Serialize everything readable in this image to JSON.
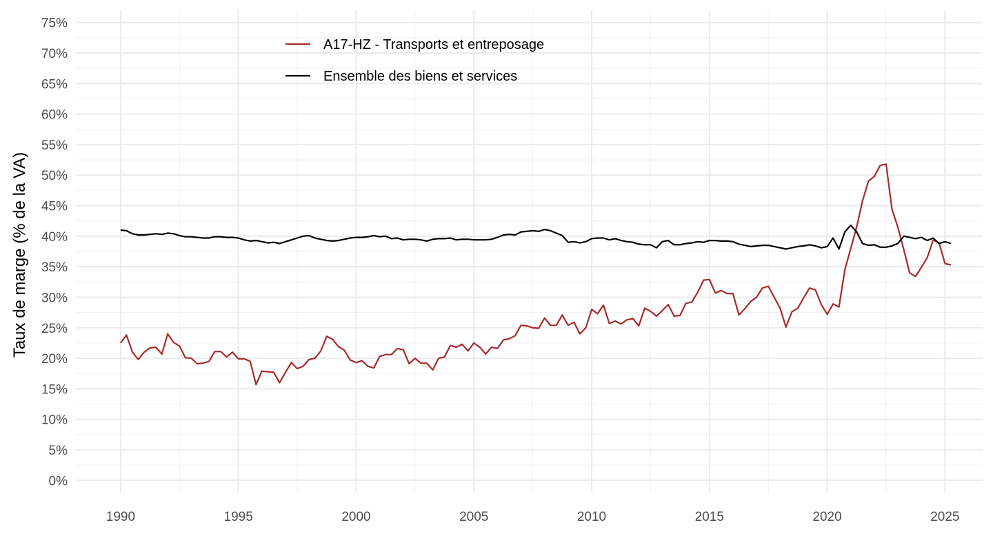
{
  "chart_data": {
    "type": "line",
    "title": "",
    "xlabel": "",
    "ylabel": "Taux de marge (% de la VA)",
    "xlim": [
      1988.1,
      2026.6
    ],
    "ylim": [
      -0.02,
      0.77
    ],
    "x_ticks": [
      1990,
      1995,
      2000,
      2005,
      2010,
      2015,
      2020,
      2025
    ],
    "x_tick_labels": [
      "1990",
      "1995",
      "2000",
      "2005",
      "2010",
      "2015",
      "2020",
      "2025"
    ],
    "y_ticks": [
      0,
      0.05,
      0.1,
      0.15,
      0.2,
      0.25,
      0.3,
      0.35,
      0.4,
      0.45,
      0.5,
      0.55,
      0.6,
      0.65,
      0.7,
      0.75
    ],
    "y_tick_labels": [
      "0%",
      "5%",
      "10%",
      "15%",
      "20%",
      "25%",
      "30%",
      "35%",
      "40%",
      "45%",
      "50%",
      "55%",
      "60%",
      "65%",
      "70%",
      "75%"
    ],
    "grid": true,
    "legend_position": "top-center",
    "series": [
      {
        "name": "A17-HZ - Transports et entreposage",
        "color": "#a52a2a",
        "x": [
          1990.0,
          1990.25,
          1990.5,
          1990.75,
          1991.0,
          1991.25,
          1991.5,
          1991.75,
          1992.0,
          1992.25,
          1992.5,
          1992.75,
          1993.0,
          1993.25,
          1993.5,
          1993.75,
          1994.0,
          1994.25,
          1994.5,
          1994.75,
          1995.0,
          1995.25,
          1995.5,
          1995.75,
          1996.0,
          1996.25,
          1996.5,
          1996.75,
          1997.0,
          1997.25,
          1997.5,
          1997.75,
          1998.0,
          1998.25,
          1998.5,
          1998.75,
          1999.0,
          1999.25,
          1999.5,
          1999.75,
          2000.0,
          2000.25,
          2000.5,
          2000.75,
          2001.0,
          2001.25,
          2001.5,
          2001.75,
          2002.0,
          2002.25,
          2002.5,
          2002.75,
          2003.0,
          2003.25,
          2003.5,
          2003.75,
          2004.0,
          2004.25,
          2004.5,
          2004.75,
          2005.0,
          2005.25,
          2005.5,
          2005.75,
          2006.0,
          2006.25,
          2006.5,
          2006.75,
          2007.0,
          2007.25,
          2007.5,
          2007.75,
          2008.0,
          2008.25,
          2008.5,
          2008.75,
          2009.0,
          2009.25,
          2009.5,
          2009.75,
          2010.0,
          2010.25,
          2010.5,
          2010.75,
          2011.0,
          2011.25,
          2011.5,
          2011.75,
          2012.0,
          2012.25,
          2012.5,
          2012.75,
          2013.0,
          2013.25,
          2013.5,
          2013.75,
          2014.0,
          2014.25,
          2014.5,
          2014.75,
          2015.0,
          2015.25,
          2015.5,
          2015.75,
          2016.0,
          2016.25,
          2016.5,
          2016.75,
          2017.0,
          2017.25,
          2017.5,
          2017.75,
          2018.0,
          2018.25,
          2018.5,
          2018.75,
          2019.0,
          2019.25,
          2019.5,
          2019.75,
          2020.0,
          2020.25,
          2020.5,
          2020.75,
          2021.0,
          2021.25,
          2021.5,
          2021.75,
          2022.0,
          2022.25,
          2022.5,
          2022.75,
          2023.0,
          2023.25,
          2023.5,
          2023.75,
          2024.0,
          2024.25,
          2024.5,
          2024.75,
          2025.0,
          2025.25
        ],
        "y": [
          0.225,
          0.238,
          0.21,
          0.198,
          0.21,
          0.217,
          0.218,
          0.207,
          0.24,
          0.226,
          0.22,
          0.201,
          0.2,
          0.191,
          0.192,
          0.195,
          0.211,
          0.211,
          0.202,
          0.21,
          0.199,
          0.199,
          0.195,
          0.157,
          0.179,
          0.178,
          0.177,
          0.16,
          0.177,
          0.193,
          0.183,
          0.187,
          0.198,
          0.2,
          0.212,
          0.236,
          0.231,
          0.219,
          0.213,
          0.197,
          0.193,
          0.196,
          0.187,
          0.184,
          0.203,
          0.206,
          0.206,
          0.216,
          0.214,
          0.191,
          0.2,
          0.192,
          0.192,
          0.181,
          0.2,
          0.202,
          0.221,
          0.218,
          0.223,
          0.212,
          0.225,
          0.218,
          0.207,
          0.218,
          0.216,
          0.23,
          0.232,
          0.237,
          0.254,
          0.253,
          0.25,
          0.249,
          0.266,
          0.254,
          0.254,
          0.271,
          0.254,
          0.259,
          0.24,
          0.25,
          0.28,
          0.273,
          0.287,
          0.257,
          0.261,
          0.256,
          0.263,
          0.265,
          0.253,
          0.282,
          0.277,
          0.269,
          0.278,
          0.288,
          0.269,
          0.27,
          0.29,
          0.292,
          0.308,
          0.328,
          0.329,
          0.307,
          0.311,
          0.306,
          0.306,
          0.271,
          0.281,
          0.293,
          0.3,
          0.315,
          0.318,
          0.3,
          0.282,
          0.251,
          0.276,
          0.282,
          0.299,
          0.315,
          0.312,
          0.288,
          0.272,
          0.289,
          0.284,
          0.345,
          0.38,
          0.415,
          0.458,
          0.49,
          0.498,
          0.516,
          0.518,
          0.444,
          0.415,
          0.378,
          0.34,
          0.334,
          0.349,
          0.365,
          0.394,
          0.389,
          0.355,
          0.353
        ]
      },
      {
        "name": "Ensemble des biens et services",
        "color": "#000000",
        "x": [
          1990.0,
          1990.25,
          1990.5,
          1990.75,
          1991.0,
          1991.25,
          1991.5,
          1991.75,
          1992.0,
          1992.25,
          1992.5,
          1992.75,
          1993.0,
          1993.25,
          1993.5,
          1993.75,
          1994.0,
          1994.25,
          1994.5,
          1994.75,
          1995.0,
          1995.25,
          1995.5,
          1995.75,
          1996.0,
          1996.25,
          1996.5,
          1996.75,
          1997.0,
          1997.25,
          1997.5,
          1997.75,
          1998.0,
          1998.25,
          1998.5,
          1998.75,
          1999.0,
          1999.25,
          1999.5,
          1999.75,
          2000.0,
          2000.25,
          2000.5,
          2000.75,
          2001.0,
          2001.25,
          2001.5,
          2001.75,
          2002.0,
          2002.25,
          2002.5,
          2002.75,
          2003.0,
          2003.25,
          2003.5,
          2003.75,
          2004.0,
          2004.25,
          2004.5,
          2004.75,
          2005.0,
          2005.25,
          2005.5,
          2005.75,
          2006.0,
          2006.25,
          2006.5,
          2006.75,
          2007.0,
          2007.25,
          2007.5,
          2007.75,
          2008.0,
          2008.25,
          2008.5,
          2008.75,
          2009.0,
          2009.25,
          2009.5,
          2009.75,
          2010.0,
          2010.25,
          2010.5,
          2010.75,
          2011.0,
          2011.25,
          2011.5,
          2011.75,
          2012.0,
          2012.25,
          2012.5,
          2012.75,
          2013.0,
          2013.25,
          2013.5,
          2013.75,
          2014.0,
          2014.25,
          2014.5,
          2014.75,
          2015.0,
          2015.25,
          2015.5,
          2015.75,
          2016.0,
          2016.25,
          2016.5,
          2016.75,
          2017.0,
          2017.25,
          2017.5,
          2017.75,
          2018.0,
          2018.25,
          2018.5,
          2018.75,
          2019.0,
          2019.25,
          2019.5,
          2019.75,
          2020.0,
          2020.25,
          2020.5,
          2020.75,
          2021.0,
          2021.25,
          2021.5,
          2021.75,
          2022.0,
          2022.25,
          2022.5,
          2022.75,
          2023.0,
          2023.25,
          2023.5,
          2023.75,
          2024.0,
          2024.25,
          2024.5,
          2024.75,
          2025.0,
          2025.25
        ],
        "y": [
          0.41,
          0.409,
          0.404,
          0.402,
          0.402,
          0.403,
          0.404,
          0.403,
          0.405,
          0.404,
          0.401,
          0.399,
          0.399,
          0.398,
          0.397,
          0.397,
          0.399,
          0.399,
          0.398,
          0.398,
          0.397,
          0.394,
          0.392,
          0.393,
          0.391,
          0.389,
          0.39,
          0.388,
          0.391,
          0.394,
          0.397,
          0.4,
          0.401,
          0.397,
          0.395,
          0.393,
          0.392,
          0.393,
          0.395,
          0.397,
          0.398,
          0.398,
          0.399,
          0.401,
          0.399,
          0.4,
          0.396,
          0.397,
          0.394,
          0.395,
          0.395,
          0.394,
          0.392,
          0.395,
          0.396,
          0.396,
          0.397,
          0.394,
          0.395,
          0.395,
          0.394,
          0.394,
          0.394,
          0.395,
          0.398,
          0.402,
          0.403,
          0.402,
          0.407,
          0.408,
          0.409,
          0.408,
          0.411,
          0.409,
          0.405,
          0.401,
          0.39,
          0.391,
          0.389,
          0.391,
          0.396,
          0.397,
          0.397,
          0.394,
          0.396,
          0.393,
          0.391,
          0.39,
          0.387,
          0.386,
          0.386,
          0.381,
          0.391,
          0.393,
          0.386,
          0.386,
          0.388,
          0.389,
          0.391,
          0.39,
          0.393,
          0.393,
          0.392,
          0.392,
          0.391,
          0.387,
          0.385,
          0.383,
          0.384,
          0.385,
          0.385,
          0.383,
          0.381,
          0.379,
          0.381,
          0.383,
          0.384,
          0.386,
          0.384,
          0.381,
          0.383,
          0.397,
          0.379,
          0.407,
          0.418,
          0.407,
          0.388,
          0.385,
          0.386,
          0.382,
          0.382,
          0.384,
          0.388,
          0.4,
          0.398,
          0.396,
          0.398,
          0.393,
          0.397,
          0.388,
          0.391,
          0.388
        ]
      }
    ]
  }
}
